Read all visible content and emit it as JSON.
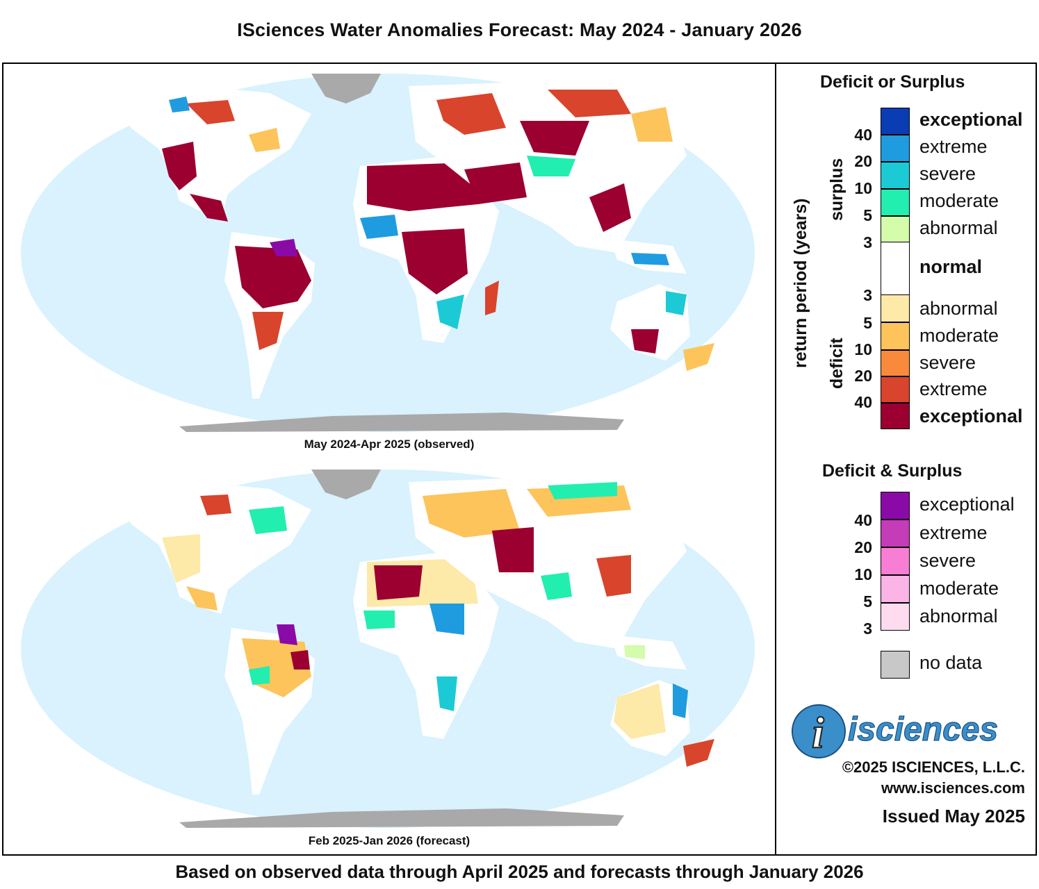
{
  "title": "ISciences Water Anomalies Forecast: May 2024 - January 2026",
  "footer": "Based on observed data through April 2025 and forecasts through January 2026",
  "maps": [
    {
      "caption": "May 2024-Apr 2025 (observed)"
    },
    {
      "caption": "Feb 2025-Jan 2026 (forecast)"
    }
  ],
  "legend": {
    "deficit_or_surplus_title": "Deficit or Surplus",
    "axis_title": "return period (years)",
    "surplus_word": "surplus",
    "deficit_word": "deficit",
    "surplus_classes": [
      {
        "label": "exceptional",
        "color": "#0a3db4"
      },
      {
        "label": "extreme",
        "color": "#1f9be0"
      },
      {
        "label": "severe",
        "color": "#1ccad6"
      },
      {
        "label": "moderate",
        "color": "#22eeb0"
      },
      {
        "label": "abnormal",
        "color": "#d4fcaa"
      }
    ],
    "normal": {
      "label": "normal",
      "color": "#ffffff"
    },
    "deficit_classes": [
      {
        "label": "abnormal",
        "color": "#fde9a8"
      },
      {
        "label": "moderate",
        "color": "#fcc45a"
      },
      {
        "label": "severe",
        "color": "#f98a3c"
      },
      {
        "label": "extreme",
        "color": "#d9442c"
      },
      {
        "label": "exceptional",
        "color": "#9b0030"
      }
    ],
    "surplus_return_periods": [
      "40",
      "20",
      "10",
      "5",
      "3"
    ],
    "deficit_return_periods": [
      "3",
      "5",
      "10",
      "20",
      "40"
    ],
    "both_title": "Deficit & Surplus",
    "both_classes": [
      {
        "label": "exceptional",
        "color": "#8a0aa8"
      },
      {
        "label": "extreme",
        "color": "#c43cb8"
      },
      {
        "label": "severe",
        "color": "#f77ed2"
      },
      {
        "label": "moderate",
        "color": "#fbb4e6"
      },
      {
        "label": "abnormal",
        "color": "#fddcef"
      }
    ],
    "both_return_periods": [
      "40",
      "20",
      "10",
      "5",
      "3"
    ],
    "no_data": {
      "label": "no data",
      "color": "#c8c8c8"
    }
  },
  "branding": {
    "logo_text": "isciences",
    "logo_letter": "i",
    "copyright": "©2025 ISCIENCES, L.L.C.",
    "website": "www.isciences.com",
    "issued": "Issued May 2025"
  },
  "colors": {
    "ocean": "#d9f2fd",
    "land_base": "#ffffff",
    "antarctica": "#a9a9a9"
  }
}
